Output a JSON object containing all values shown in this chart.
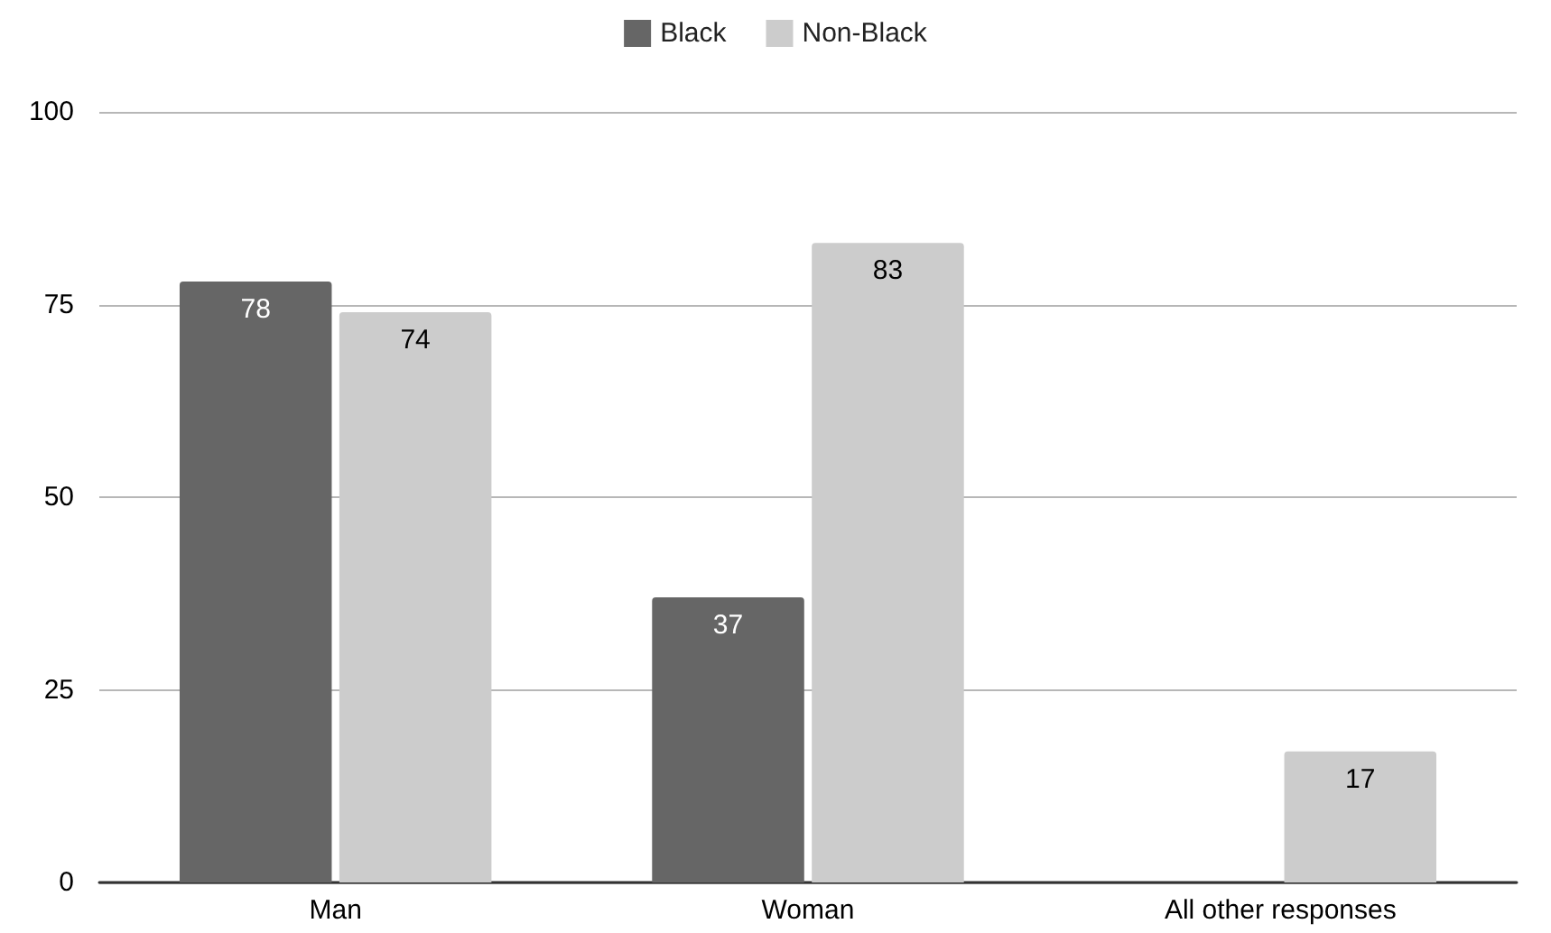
{
  "chart_data": {
    "type": "bar",
    "categories": [
      "Man",
      "Woman",
      "All other responses"
    ],
    "series": [
      {
        "name": "Black",
        "color": "#666666",
        "values": [
          78,
          37,
          null
        ]
      },
      {
        "name": "Non-Black",
        "color": "#cccccc",
        "values": [
          74,
          83,
          17
        ]
      }
    ],
    "ylim": [
      0,
      100
    ],
    "yticks": [
      0,
      25,
      50,
      75,
      100
    ],
    "grid": "y",
    "legend": "top",
    "data_labels": true
  }
}
